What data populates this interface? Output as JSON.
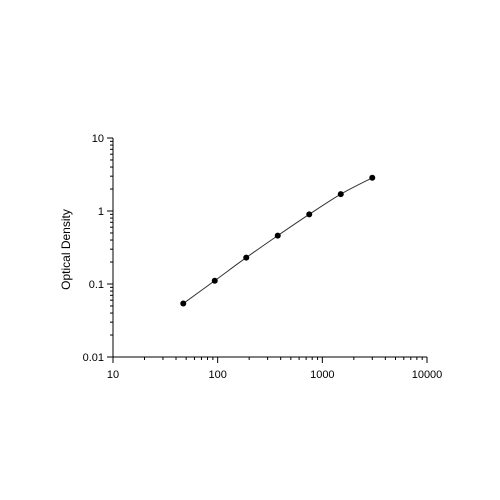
{
  "chart_data": {
    "type": "scatter",
    "title": "",
    "xlabel": "",
    "ylabel": "Optical Density",
    "x_scale": "log",
    "y_scale": "log",
    "xlim": [
      10,
      10000
    ],
    "ylim": [
      0.01,
      10
    ],
    "x_tick_labels": [
      "10",
      "100",
      "1000",
      "10000"
    ],
    "y_tick_labels": [
      "10",
      "1",
      "0.1",
      "0.01"
    ],
    "grid": false,
    "legend": false,
    "fit_line": true,
    "series": [
      {
        "x": [
          46.9,
          93.8,
          187.5,
          375,
          750,
          1500,
          3000
        ],
        "y": [
          0.054,
          0.111,
          0.23,
          0.46,
          0.9,
          1.7,
          2.85
        ]
      }
    ],
    "colors": {
      "axis": "#000000",
      "points": "#000000",
      "line": "#333333"
    }
  }
}
